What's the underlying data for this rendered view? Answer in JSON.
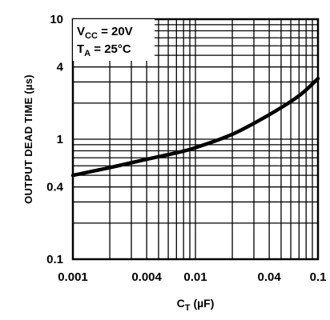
{
  "chart_data": {
    "type": "line",
    "title": "",
    "xlabel": "C",
    "xlabel_sub": "T",
    "xlabel_unit": "(µF)",
    "ylabel": "OUTPUT DEAD TIME (µs)",
    "xscale": "log",
    "yscale": "log",
    "xlim": [
      0.001,
      0.1
    ],
    "ylim": [
      0.1,
      10
    ],
    "grid": true,
    "x_tick_labels": [
      "0.001",
      "0.004",
      "0.01",
      "0.04",
      "0.1"
    ],
    "x_tick_values": [
      0.001,
      0.004,
      0.01,
      0.04,
      0.1
    ],
    "y_tick_labels": [
      "10",
      "4",
      "1",
      "0.4",
      "0.1"
    ],
    "y_tick_values": [
      10,
      4,
      1,
      0.4,
      0.1
    ],
    "annotations": [
      {
        "main": "V",
        "sub": "CC",
        "rest": " = 20V"
      },
      {
        "main": "T",
        "sub": "A",
        "rest": " = 25°C"
      }
    ],
    "series": [
      {
        "x": [
          0.001,
          0.002,
          0.004,
          0.007,
          0.01,
          0.02,
          0.04,
          0.07,
          0.1
        ],
        "y": [
          0.5,
          0.58,
          0.68,
          0.77,
          0.85,
          1.1,
          1.6,
          2.3,
          3.2
        ]
      }
    ]
  }
}
